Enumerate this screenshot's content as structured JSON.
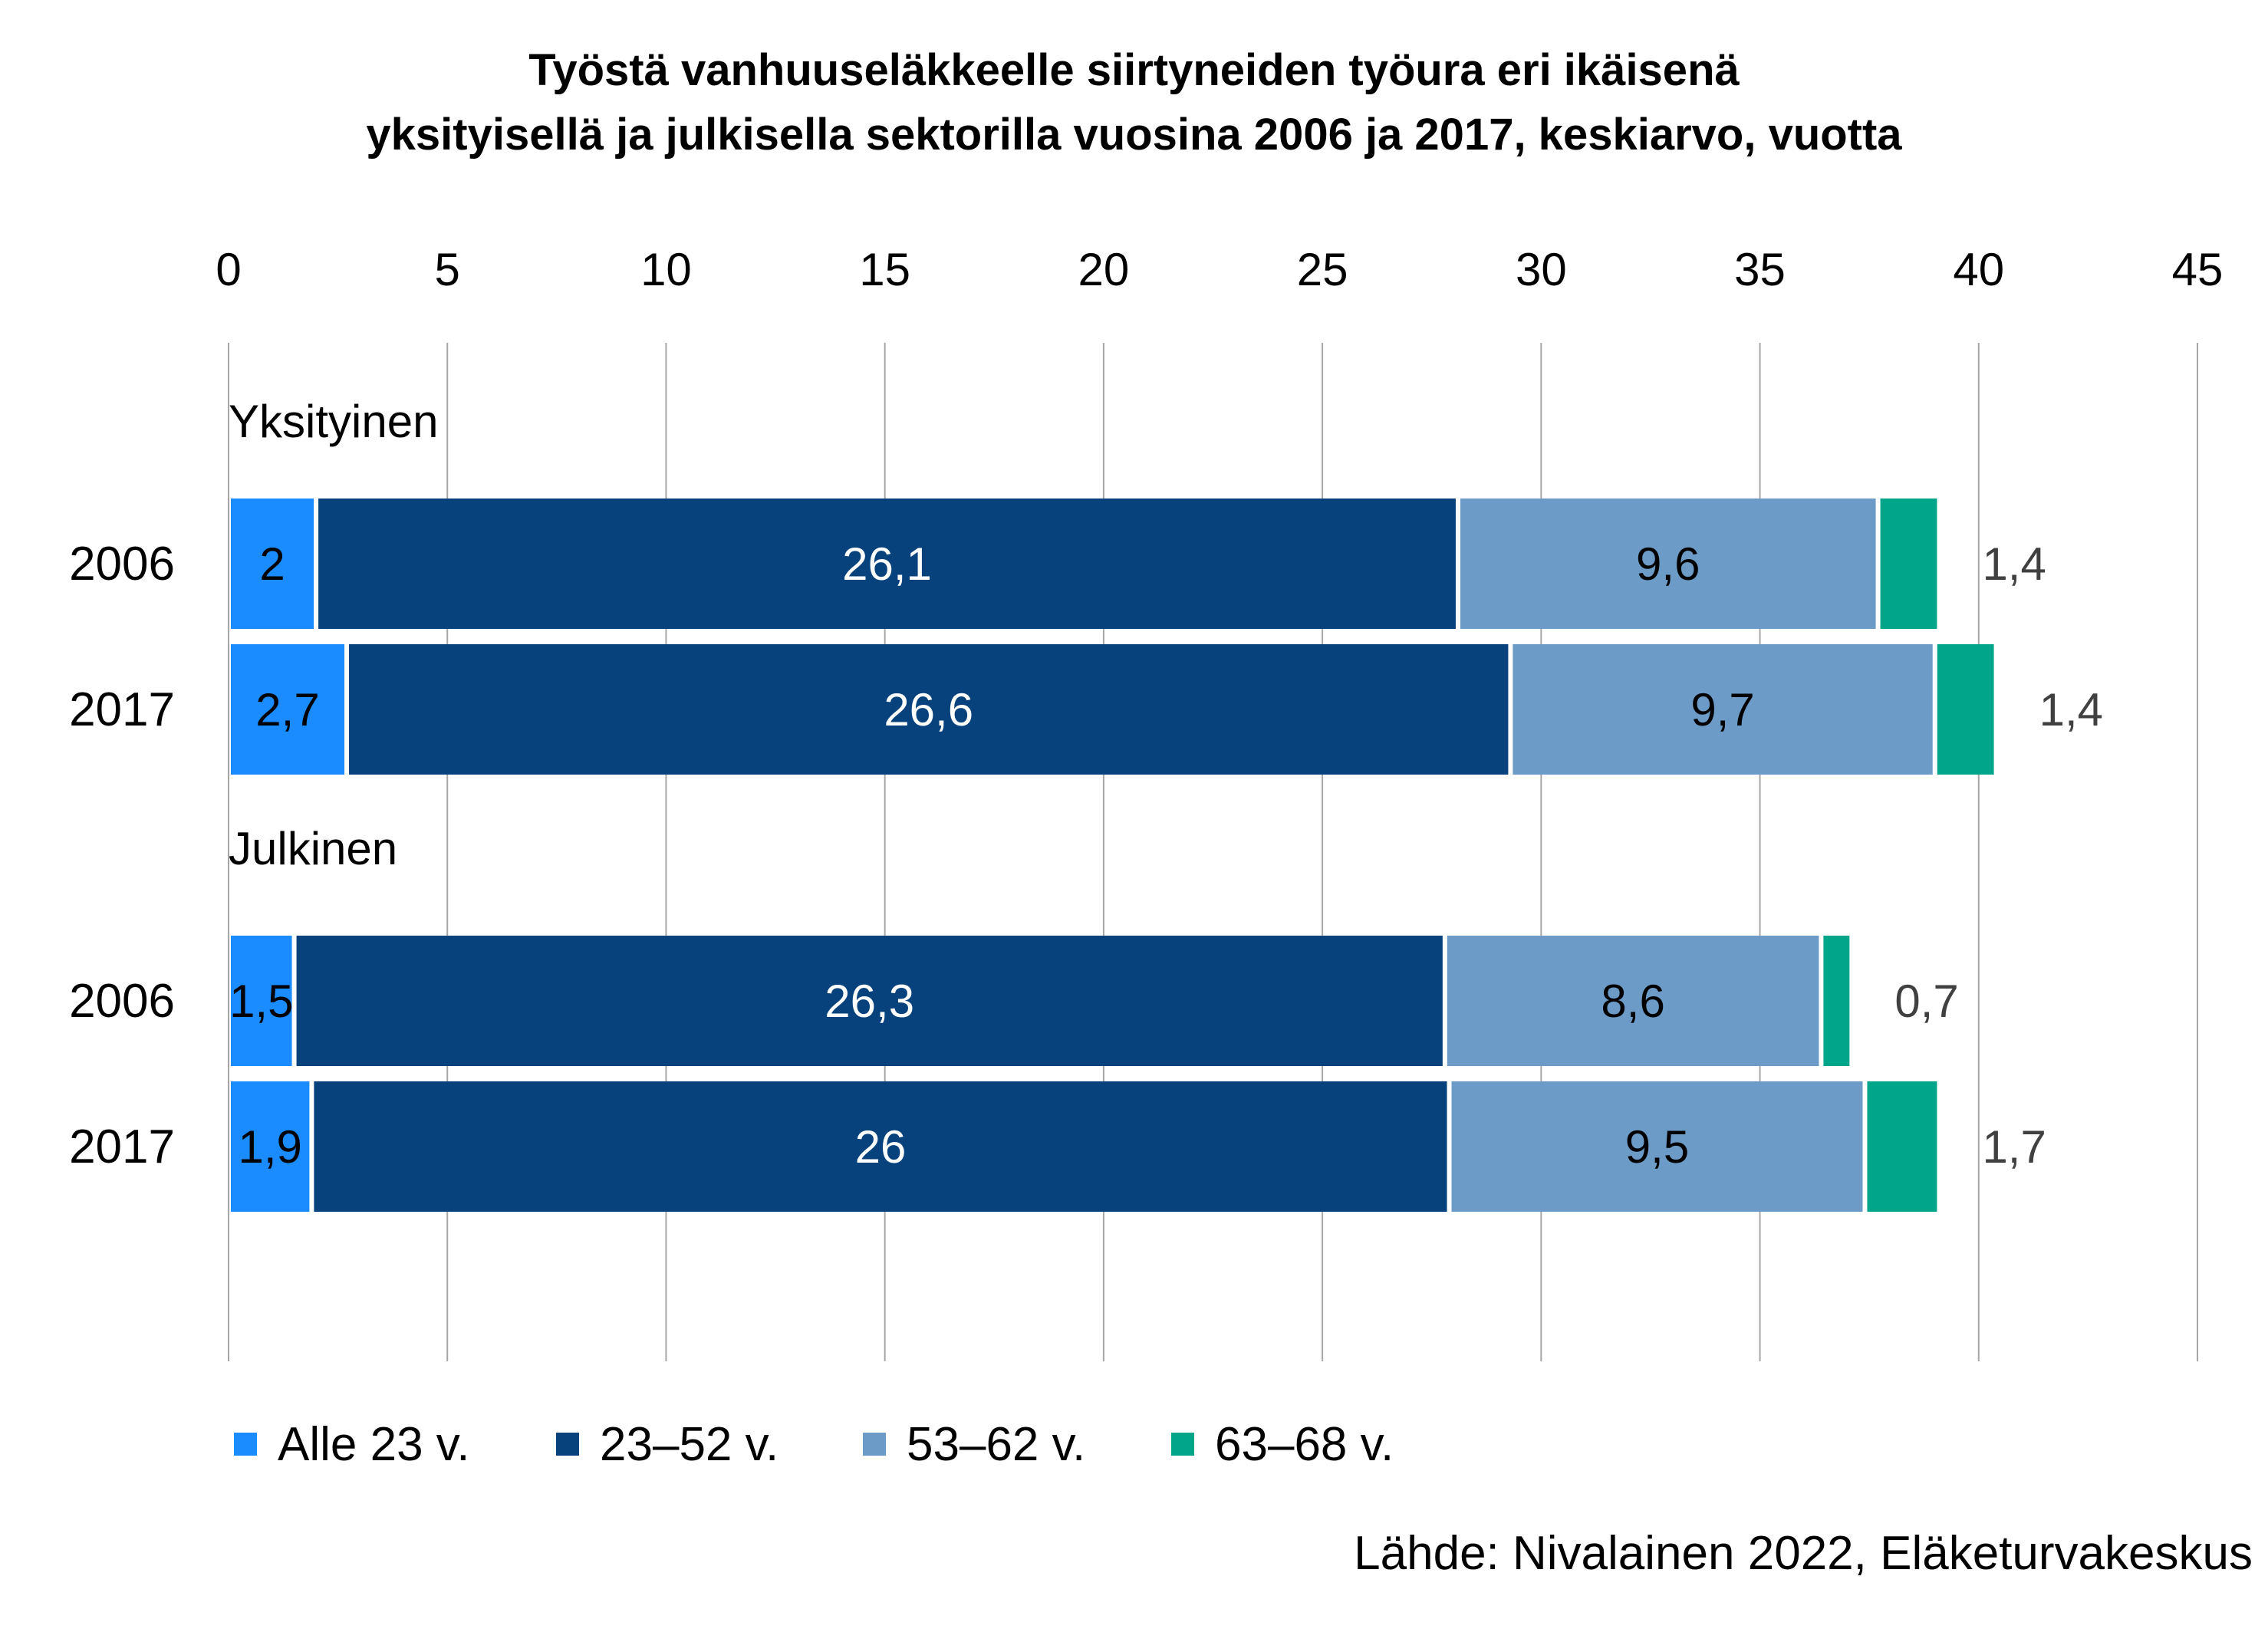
{
  "chart_data": {
    "type": "bar",
    "orientation": "horizontal",
    "stacked": true,
    "title": "Työstä vanhuuseläkkeelle siirtyneiden työura eri ikäisenä\nyksityisellä ja julkisella sektorilla vuosina 2006 ja 2017, keskiarvo, vuotta",
    "xlim": [
      0,
      45
    ],
    "x_ticks": [
      0,
      5,
      10,
      15,
      20,
      25,
      30,
      35,
      40,
      45
    ],
    "x_axis_position": "top",
    "grid": "vertical",
    "legend_position": "bottom-left",
    "groups": [
      {
        "label": "Yksityinen",
        "rows": [
          {
            "label": "2006",
            "values": [
              2,
              26.1,
              9.6,
              1.4
            ],
            "data_labels": [
              "2",
              "26,1",
              "9,6",
              "1,4"
            ]
          },
          {
            "label": "2017",
            "values": [
              2.7,
              26.6,
              9.7,
              1.4
            ],
            "data_labels": [
              "2,7",
              "26,6",
              "9,7",
              "1,4"
            ]
          }
        ]
      },
      {
        "label": "Julkinen",
        "rows": [
          {
            "label": "2006",
            "values": [
              1.5,
              26.3,
              8.6,
              0.7
            ],
            "data_labels": [
              "1,5",
              "26,3",
              "8,6",
              "0,7"
            ]
          },
          {
            "label": "2017",
            "values": [
              1.9,
              26,
              9.5,
              1.7
            ],
            "data_labels": [
              "1,9",
              "26",
              "9,5",
              "1,7"
            ]
          }
        ]
      }
    ],
    "series": [
      {
        "name": "Alle 23 v.",
        "color": "#1a8cff",
        "label_color": "#000000"
      },
      {
        "name": "23–52 v.",
        "color": "#07427d",
        "label_color": "#ffffff"
      },
      {
        "name": "53–62 v.",
        "color": "#6b9bc6",
        "label_color": "#000000"
      },
      {
        "name": "63–68 v.",
        "color": "#00a58a",
        "label_color": "#404040"
      }
    ]
  },
  "source": "Lähde: Nivalainen 2022, Eläketurvakeskus"
}
